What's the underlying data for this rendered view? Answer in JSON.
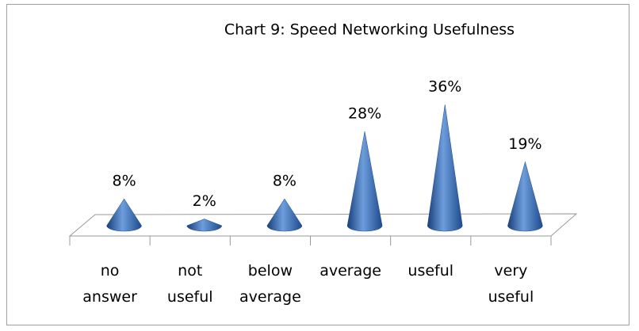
{
  "chart_data": {
    "type": "cone",
    "title": "Chart 9: Speed Networking Usefulness",
    "categories": [
      "no answer",
      "not useful",
      "below average",
      "average",
      "useful",
      "very useful"
    ],
    "values": [
      8,
      2,
      8,
      28,
      36,
      19
    ],
    "value_labels": [
      "8%",
      "2%",
      "8%",
      "28%",
      "36%",
      "19%"
    ],
    "color": "#2e64b0"
  }
}
